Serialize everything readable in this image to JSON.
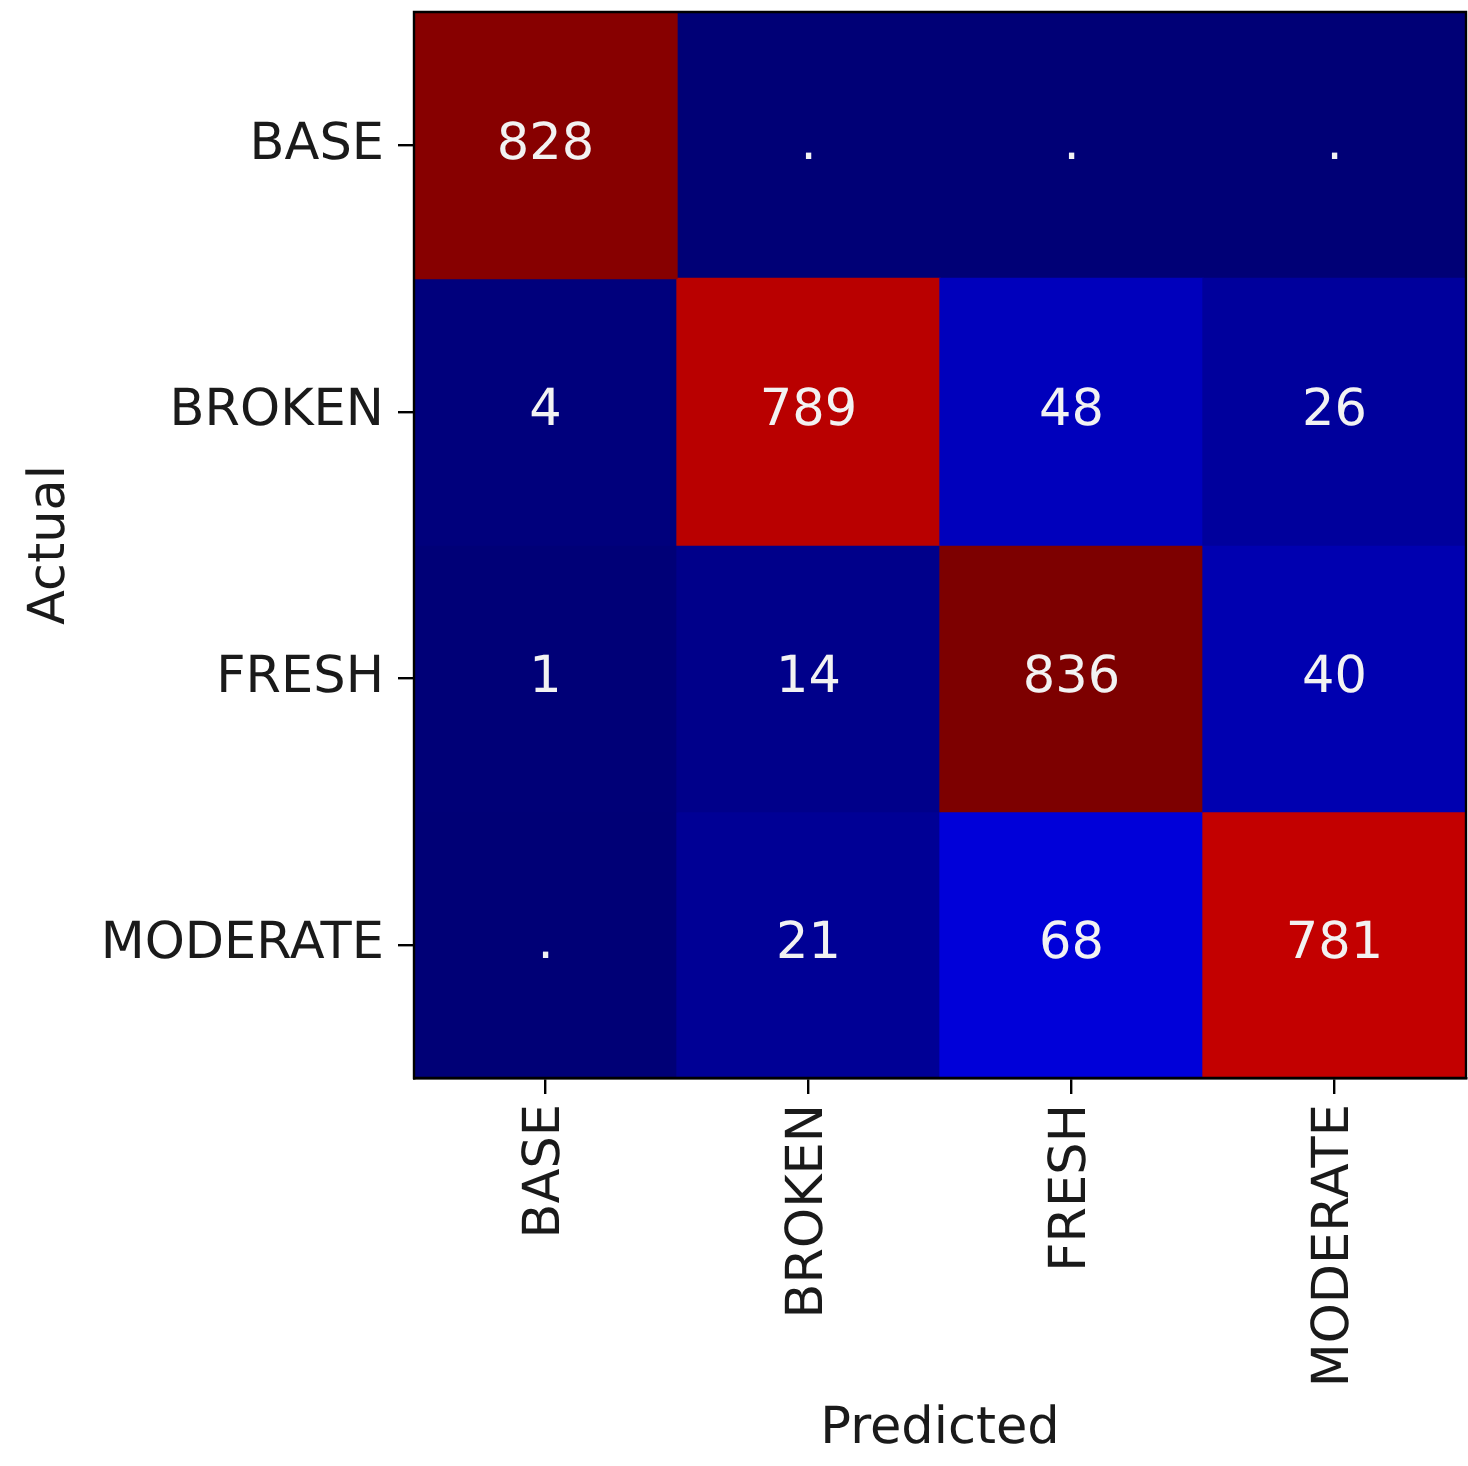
{
  "chart_data": {
    "type": "heatmap",
    "xlabel": "Predicted",
    "ylabel": "Actual",
    "categories": [
      "BASE",
      "BROKEN",
      "FRESH",
      "MODERATE"
    ],
    "y_categories": [
      "BASE",
      "BROKEN",
      "FRESH",
      "MODERATE"
    ],
    "cells": [
      [
        828,
        null,
        null,
        null
      ],
      [
        4,
        789,
        48,
        26
      ],
      [
        1,
        14,
        836,
        40
      ],
      [
        null,
        21,
        68,
        781
      ]
    ],
    "cell_labels": [
      [
        "828",
        ".",
        ".",
        "."
      ],
      [
        "4",
        "789",
        "48",
        "26"
      ],
      [
        "1",
        "14",
        "836",
        "40"
      ],
      [
        ".",
        "21",
        "68",
        "781"
      ]
    ]
  }
}
